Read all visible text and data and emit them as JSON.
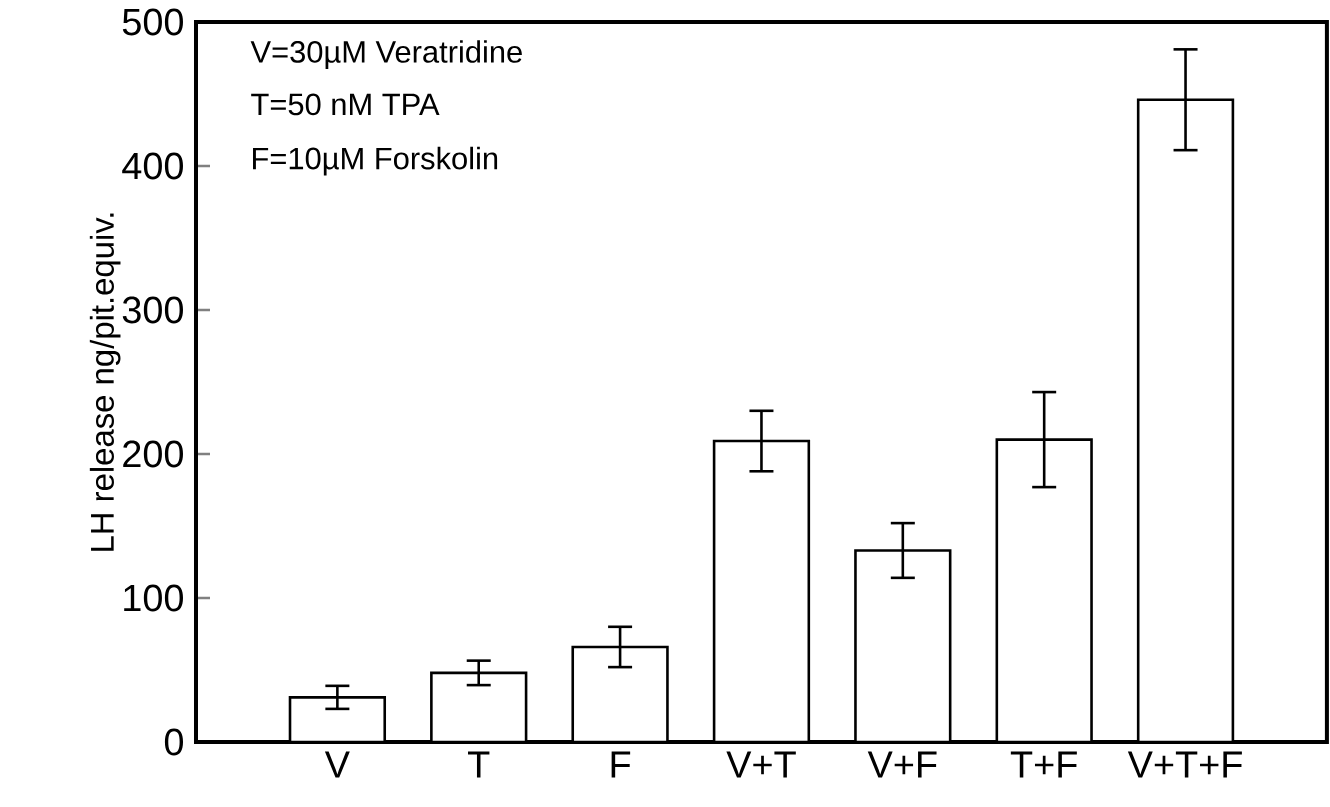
{
  "chart_data": {
    "type": "bar",
    "ylabel": "LH release ng/pit.equiv.",
    "categories": [
      "V",
      "T",
      "F",
      "V+T",
      "V+F",
      "T+F",
      "V+T+F"
    ],
    "values": [
      31,
      48,
      66,
      209,
      133,
      210,
      446
    ],
    "errors": [
      8,
      8.5,
      14,
      21,
      19,
      33,
      35
    ],
    "color": "#ffffff",
    "ylim": [
      0,
      500
    ],
    "yticks": [
      0,
      100,
      200,
      300,
      400,
      500
    ],
    "annotations": [
      "V=30µM Veratridine",
      "T=50 nM TPA",
      "F=10µM Forskolin"
    ]
  }
}
